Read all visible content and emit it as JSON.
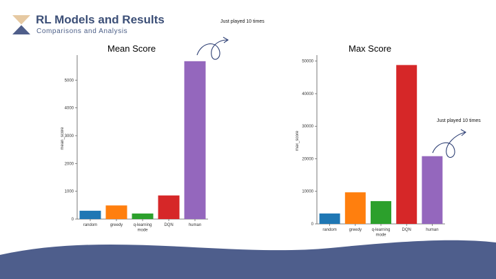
{
  "slide": {
    "title": "RL Models and Results",
    "subtitle": "Comparisons and Analysis",
    "colors": {
      "title": "#3c4f77",
      "logo_top": "#e6c9a2",
      "logo_bottom": "#4f5e8a",
      "wave": "#4e5e8c"
    }
  },
  "annotations": {
    "mean_note": "Just played 10 times",
    "max_note": "Just played 10 times"
  },
  "chart_data": [
    {
      "type": "bar",
      "title": "Mean Score",
      "xlabel": "",
      "ylabel": "mean_score",
      "categories": [
        "random",
        "greedy",
        "q-learning mode",
        "DQN",
        "human"
      ],
      "category_lines": [
        [
          "random"
        ],
        [
          "greedy"
        ],
        [
          "q-learning",
          "mode"
        ],
        [
          "DQN"
        ],
        [
          "human"
        ]
      ],
      "values": [
        300,
        490,
        200,
        850,
        5680
      ],
      "colors": [
        "#1f77b4",
        "#ff7f0e",
        "#2ca02c",
        "#d62728",
        "#9467bd"
      ],
      "yticks": [
        0,
        1000,
        2000,
        3000,
        4000,
        5000
      ],
      "ylim": [
        0,
        5800
      ],
      "grid": false
    },
    {
      "type": "bar",
      "title": "Max Score",
      "xlabel": "",
      "ylabel": "max_score",
      "categories": [
        "random",
        "greedy",
        "q-learning mode",
        "DQN",
        "human"
      ],
      "category_lines": [
        [
          "random"
        ],
        [
          "greedy"
        ],
        [
          "q-learning",
          "mode"
        ],
        [
          "DQN"
        ],
        [
          "human"
        ]
      ],
      "values": [
        3200,
        9700,
        7000,
        48800,
        20800
      ],
      "colors": [
        "#1f77b4",
        "#ff7f0e",
        "#2ca02c",
        "#d62728",
        "#9467bd"
      ],
      "yticks": [
        0,
        10000,
        20000,
        30000,
        40000,
        50000
      ],
      "ylim": [
        0,
        51000
      ],
      "grid": false
    }
  ]
}
